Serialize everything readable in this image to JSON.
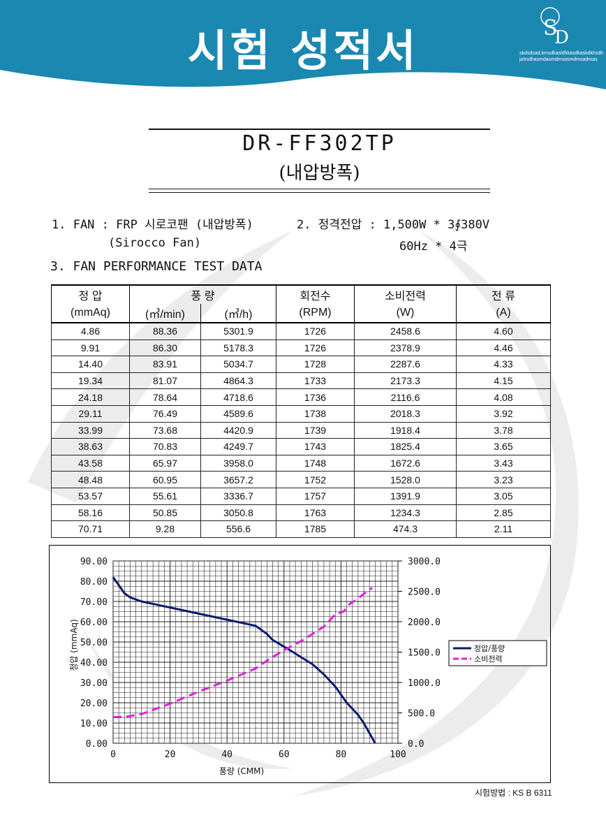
{
  "header": {
    "title": "시험 성적서",
    "logo_text": "SD",
    "logo_subtext_1": "skdsdsad,kmsdkasldhkasdkaskdkhsdh",
    "logo_subtext_2": "jahsdhasmdasmdmsasmdmsadmas",
    "band_color": "#1a88b0"
  },
  "model": {
    "name": "DR-FF302TP",
    "subtitle": "(내압방폭)"
  },
  "specs": {
    "fan_label": "1. FAN : FRP 시로코팬 (내압방폭)",
    "fan_sub": "(Sirocco Fan)",
    "voltage_label": "2. 정격전압 : 1,500W * 3∮380V",
    "voltage_sub": "60Hz  *  4극",
    "section_title": "3. FAN PERFORMANCE TEST DATA"
  },
  "table": {
    "header_row1": [
      "정    압",
      "풍    량",
      "회전수",
      "소비전력",
      "전    류"
    ],
    "header_row2": [
      "(mmAq)",
      "(㎥/min)",
      "(㎥/h)",
      "(RPM)",
      "(W)",
      "(A)"
    ],
    "rows": [
      [
        "4.86",
        "88.36",
        "5301.9",
        "1726",
        "2458.6",
        "4.60"
      ],
      [
        "9.91",
        "86.30",
        "5178.3",
        "1726",
        "2378.9",
        "4.46"
      ],
      [
        "14.40",
        "83.91",
        "5034.7",
        "1728",
        "2287.6",
        "4.33"
      ],
      [
        "19.34",
        "81.07",
        "4864.3",
        "1733",
        "2173.3",
        "4.15"
      ],
      [
        "24.18",
        "78.64",
        "4718.6",
        "1736",
        "2116.6",
        "4.08"
      ],
      [
        "29.11",
        "76.49",
        "4589.6",
        "1738",
        "2018.3",
        "3.92"
      ],
      [
        "33.99",
        "73.68",
        "4420.9",
        "1739",
        "1918.4",
        "3.78"
      ],
      [
        "38.63",
        "70.83",
        "4249.7",
        "1743",
        "1825.4",
        "3.65"
      ],
      [
        "43.58",
        "65.97",
        "3958.0",
        "1748",
        "1672.6",
        "3.43"
      ],
      [
        "48.48",
        "60.95",
        "3657.2",
        "1752",
        "1528.0",
        "3.23"
      ],
      [
        "53.57",
        "55.61",
        "3336.7",
        "1757",
        "1391.9",
        "3.05"
      ],
      [
        "58.16",
        "50.85",
        "3050.8",
        "1763",
        "1234.3",
        "2.85"
      ],
      [
        "70.71",
        "9.28",
        "556.6",
        "1785",
        "474.3",
        "2.11"
      ]
    ]
  },
  "chart_data": {
    "type": "line",
    "xlabel": "풍량 (CMM)",
    "ylabel": "정압 (mmAq)",
    "xlim": [
      0,
      100
    ],
    "ylim": [
      0,
      90
    ],
    "y2lim": [
      0,
      3000
    ],
    "x_ticks": [
      "0",
      "20",
      "40",
      "60",
      "80",
      "100"
    ],
    "y_ticks": [
      "0.00",
      "10.00",
      "20.00",
      "30.00",
      "40.00",
      "50.00",
      "60.00",
      "70.00",
      "80.00",
      "90.00"
    ],
    "y2_ticks": [
      "0.0",
      "500.0",
      "1000.0",
      "1500.0",
      "2000.0",
      "2500.0",
      "3000.0"
    ],
    "grid": true,
    "legend_position": "right",
    "series": [
      {
        "name": "정압/풍량",
        "axis": "left",
        "color": "#0a1a6e",
        "style": "solid",
        "x": [
          0,
          2,
          4,
          6,
          10,
          20,
          30,
          40,
          50,
          54,
          56,
          62,
          70,
          74,
          78,
          82,
          86,
          88,
          90,
          92
        ],
        "y": [
          82,
          78,
          74,
          72,
          70,
          67,
          64,
          61,
          58,
          54,
          51,
          46,
          39,
          34,
          28,
          20,
          14,
          10,
          5,
          0
        ]
      },
      {
        "name": "소비전력",
        "axis": "right",
        "color": "#e020d8",
        "style": "dashed",
        "x": [
          0,
          5,
          10,
          20,
          30,
          40,
          50,
          55,
          60,
          66,
          71,
          74,
          76,
          78,
          81,
          83,
          86,
          88,
          91
        ],
        "y": [
          430,
          440,
          480,
          650,
          850,
          1030,
          1230,
          1390,
          1530,
          1680,
          1830,
          1920,
          2020,
          2120,
          2170,
          2290,
          2380,
          2460,
          2560
        ]
      }
    ]
  },
  "footer": {
    "test_method": "시험방법 : KS B 6311"
  }
}
